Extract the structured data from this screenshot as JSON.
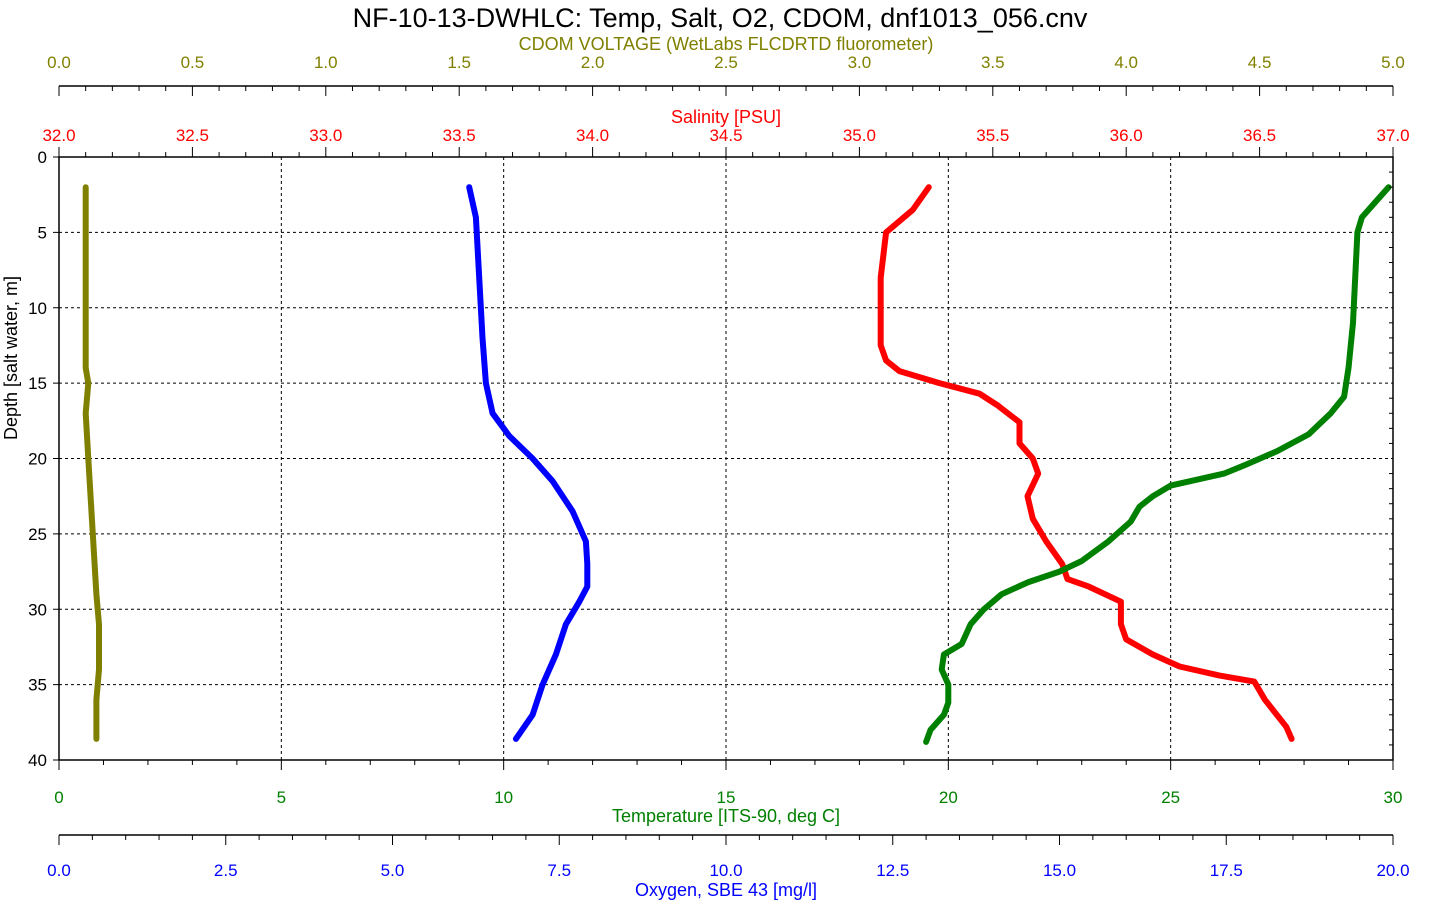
{
  "chart_data": {
    "type": "line",
    "title": "NF-10-13-DWHLC: Temp, Salt, O2, CDOM, dnf1013_056.cnv",
    "grid": true,
    "y_axis": {
      "label": "Depth [salt water, m]",
      "range": [
        0,
        40
      ],
      "inverted": true,
      "ticks": [
        0,
        5,
        10,
        15,
        20,
        25,
        30,
        35,
        40
      ],
      "color": "#000000"
    },
    "axes": {
      "cdom": {
        "label": "CDOM VOLTAGE (WetLabs FLCDRTD fluorometer)",
        "range": [
          0,
          5
        ],
        "ticks": [
          "0.0",
          "0.5",
          "1.0",
          "1.5",
          "2.0",
          "2.5",
          "3.0",
          "3.5",
          "4.0",
          "4.5",
          "5.0"
        ],
        "color": "#808000"
      },
      "salinity": {
        "label": "Salinity [PSU]",
        "range": [
          32,
          37
        ],
        "ticks": [
          "32.0",
          "32.5",
          "33.0",
          "33.5",
          "34.0",
          "34.5",
          "35.0",
          "35.5",
          "36.0",
          "36.5",
          "37.0"
        ],
        "color": "#ff0000"
      },
      "temperature": {
        "label": "Temperature [ITS-90, deg C]",
        "range": [
          0,
          30
        ],
        "ticks": [
          "0",
          "5",
          "10",
          "15",
          "20",
          "25",
          "30"
        ],
        "color": "#008000"
      },
      "oxygen": {
        "label": "Oxygen, SBE 43 [mg/l]",
        "range": [
          0,
          20
        ],
        "ticks": [
          "0.0",
          "2.5",
          "5.0",
          "7.5",
          "10.0",
          "12.5",
          "15.0",
          "17.5",
          "20.0"
        ],
        "color": "#0000ff"
      }
    },
    "series": [
      {
        "axis": "cdom",
        "color": "#808000",
        "points": [
          [
            0.1,
            2
          ],
          [
            0.1,
            5
          ],
          [
            0.1,
            10
          ],
          [
            0.1,
            14
          ],
          [
            0.11,
            15
          ],
          [
            0.1,
            17
          ],
          [
            0.11,
            20
          ],
          [
            0.12,
            23
          ],
          [
            0.13,
            26
          ],
          [
            0.14,
            29
          ],
          [
            0.15,
            31
          ],
          [
            0.15,
            34
          ],
          [
            0.14,
            36
          ],
          [
            0.14,
            38.6
          ]
        ]
      },
      {
        "axis": "oxygen",
        "color": "#0000ff",
        "points": [
          [
            6.15,
            2
          ],
          [
            6.25,
            4
          ],
          [
            6.3,
            8
          ],
          [
            6.35,
            12
          ],
          [
            6.4,
            15
          ],
          [
            6.5,
            17
          ],
          [
            6.75,
            18.5
          ],
          [
            7.1,
            20
          ],
          [
            7.4,
            21.5
          ],
          [
            7.7,
            23.5
          ],
          [
            7.9,
            25.5
          ],
          [
            7.92,
            27
          ],
          [
            7.92,
            28.5
          ],
          [
            7.8,
            29.5
          ],
          [
            7.6,
            31
          ],
          [
            7.45,
            33
          ],
          [
            7.25,
            35
          ],
          [
            7.1,
            37
          ],
          [
            6.85,
            38.6
          ]
        ]
      },
      {
        "axis": "salinity",
        "color": "#ff0000",
        "points": [
          [
            35.26,
            2
          ],
          [
            35.2,
            3.5
          ],
          [
            35.1,
            5
          ],
          [
            35.08,
            8
          ],
          [
            35.08,
            11
          ],
          [
            35.08,
            12.5
          ],
          [
            35.1,
            13.5
          ],
          [
            35.15,
            14.2
          ],
          [
            35.3,
            15
          ],
          [
            35.45,
            15.7
          ],
          [
            35.52,
            16.5
          ],
          [
            35.6,
            17.6
          ],
          [
            35.6,
            19
          ],
          [
            35.65,
            20
          ],
          [
            35.67,
            21
          ],
          [
            35.63,
            22.5
          ],
          [
            35.65,
            24
          ],
          [
            35.7,
            25.5
          ],
          [
            35.76,
            27
          ],
          [
            35.78,
            28
          ],
          [
            35.86,
            28.5
          ],
          [
            35.98,
            29.5
          ],
          [
            35.98,
            31
          ],
          [
            36.0,
            32
          ],
          [
            36.1,
            33
          ],
          [
            36.2,
            33.8
          ],
          [
            36.35,
            34.4
          ],
          [
            36.48,
            34.8
          ],
          [
            36.52,
            36
          ],
          [
            36.6,
            37.8
          ],
          [
            36.62,
            38.6
          ]
        ]
      },
      {
        "axis": "temperature",
        "color": "#008000",
        "points": [
          [
            29.9,
            2
          ],
          [
            29.6,
            3
          ],
          [
            29.3,
            4
          ],
          [
            29.2,
            5
          ],
          [
            29.15,
            8
          ],
          [
            29.1,
            11
          ],
          [
            29.0,
            14
          ],
          [
            28.9,
            15.9
          ],
          [
            28.6,
            17
          ],
          [
            28.1,
            18.4
          ],
          [
            27.4,
            19.5
          ],
          [
            26.7,
            20.4
          ],
          [
            26.2,
            21
          ],
          [
            25.0,
            21.8
          ],
          [
            24.6,
            22.5
          ],
          [
            24.3,
            23.2
          ],
          [
            24.1,
            24.2
          ],
          [
            23.6,
            25.5
          ],
          [
            23.0,
            26.8
          ],
          [
            22.5,
            27.5
          ],
          [
            21.8,
            28.2
          ],
          [
            21.2,
            29
          ],
          [
            20.8,
            30
          ],
          [
            20.5,
            31
          ],
          [
            20.3,
            32.3
          ],
          [
            19.9,
            33
          ],
          [
            19.85,
            34
          ],
          [
            20.0,
            35
          ],
          [
            20.0,
            36.2
          ],
          [
            19.9,
            37
          ],
          [
            19.6,
            38
          ],
          [
            19.5,
            38.8
          ]
        ]
      }
    ]
  }
}
